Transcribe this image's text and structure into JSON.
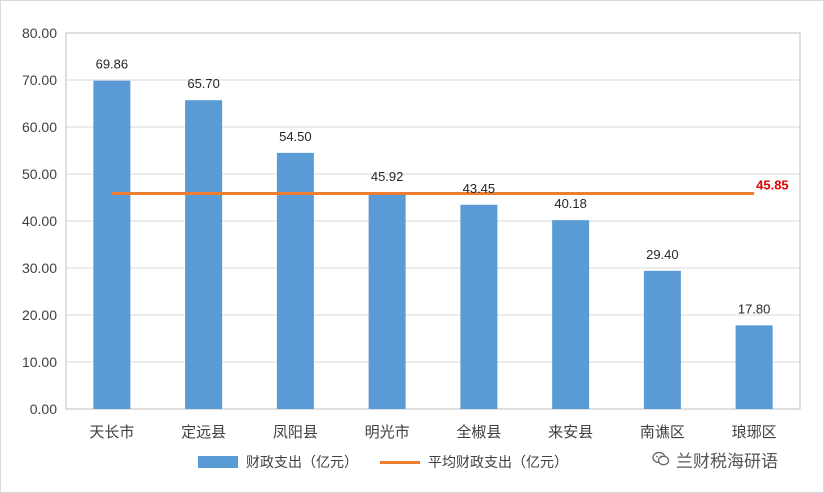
{
  "chart_data": {
    "type": "bar",
    "categories": [
      "天长市",
      "定远县",
      "凤阳县",
      "明光市",
      "全椒县",
      "来安县",
      "南谯区",
      "琅琊区"
    ],
    "series": [
      {
        "name": "财政支出（亿元）",
        "type": "bar",
        "values": [
          69.86,
          65.7,
          54.5,
          45.92,
          43.45,
          40.18,
          29.4,
          17.8
        ],
        "color": "#5b9bd5"
      },
      {
        "name": "平均财政支出（亿元）",
        "type": "line",
        "values": [
          45.85,
          45.85,
          45.85,
          45.85,
          45.85,
          45.85,
          45.85,
          45.85
        ],
        "color": "#ed7d31"
      }
    ],
    "data_labels": [
      "69.86",
      "65.70",
      "54.50",
      "45.92",
      "43.45",
      "40.18",
      "29.40",
      "17.80"
    ],
    "average_label": "45.85",
    "average_label_color": "#e00000",
    "yticks": [
      "0.00",
      "10.00",
      "20.00",
      "30.00",
      "40.00",
      "50.00",
      "60.00",
      "70.00",
      "80.00"
    ],
    "ylim": [
      0,
      80
    ],
    "grid": true,
    "legend_position": "bottom"
  },
  "legend": {
    "bar_label": "财政支出（亿元）",
    "line_label": "平均财政支出（亿元）"
  },
  "watermark": {
    "text": "兰财税海研语",
    "icon": "wechat-icon"
  }
}
